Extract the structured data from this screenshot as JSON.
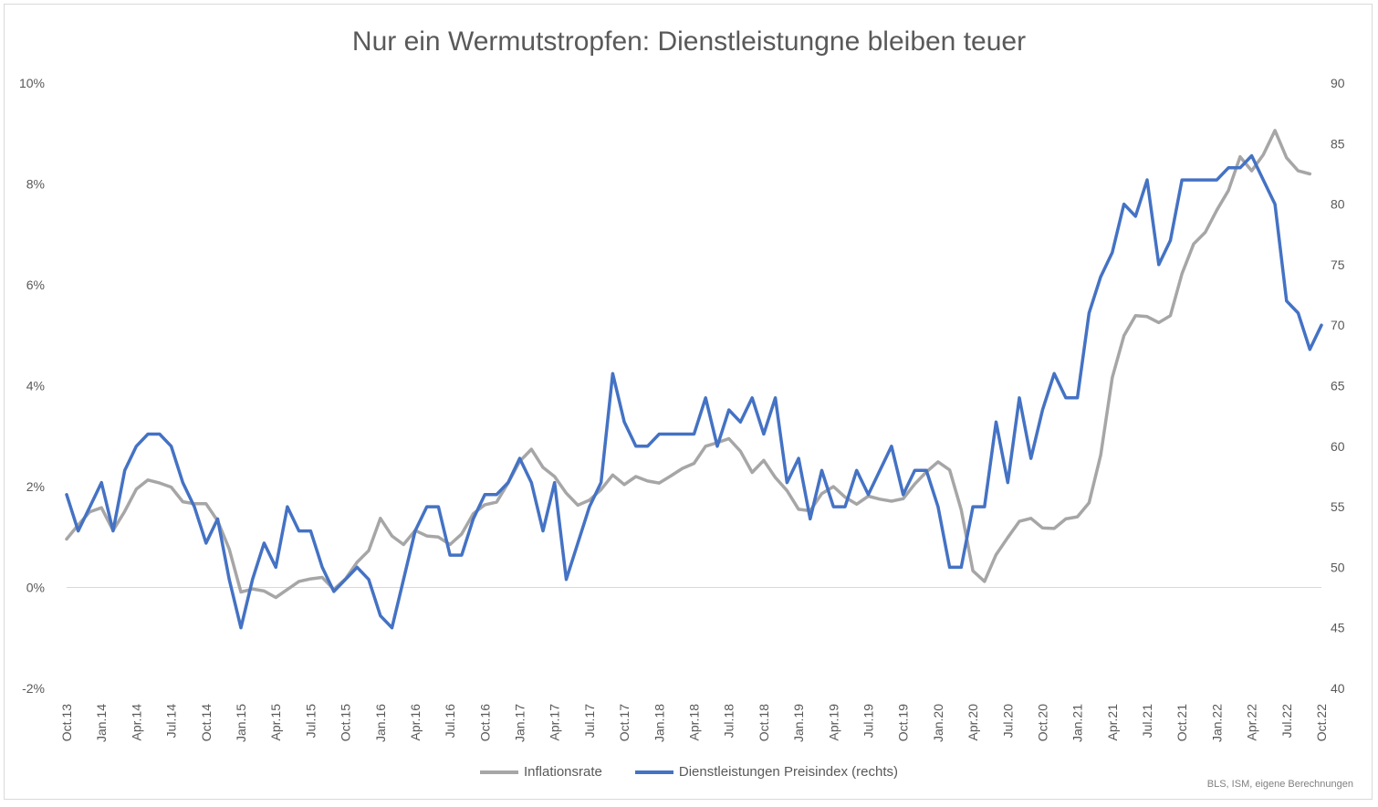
{
  "chart_data": {
    "type": "line",
    "title": "Nur ein Wermutstropfen: Dienstleistungne bleiben teuer",
    "source": "BLS, ISM, eigene Berechnungen",
    "left_axis": {
      "ylim": [
        -2,
        10
      ],
      "ticks": [
        "-2%",
        "0%",
        "2%",
        "4%",
        "6%",
        "8%",
        "10%"
      ],
      "tick_values": [
        -2,
        0,
        2,
        4,
        6,
        8,
        10
      ]
    },
    "right_axis": {
      "ylim": [
        40,
        90
      ],
      "ticks": [
        "40",
        "45",
        "50",
        "55",
        "60",
        "65",
        "70",
        "75",
        "80",
        "85",
        "90"
      ],
      "tick_values": [
        40,
        45,
        50,
        55,
        60,
        65,
        70,
        75,
        80,
        85,
        90
      ]
    },
    "x_tick_labels": [
      "Oct.13",
      "Jan.14",
      "Apr.14",
      "Jul.14",
      "Oct.14",
      "Jan.15",
      "Apr.15",
      "Jul.15",
      "Oct.15",
      "Jan.16",
      "Apr.16",
      "Jul.16",
      "Oct.16",
      "Jan.17",
      "Apr.17",
      "Jul.17",
      "Oct.17",
      "Jan.18",
      "Apr.18",
      "Jul.18",
      "Oct.18",
      "Jan.19",
      "Apr.19",
      "Jul.19",
      "Oct.19",
      "Jan.20",
      "Apr.20",
      "Jul.20",
      "Oct.20",
      "Jan.21",
      "Apr.21",
      "Jul.21",
      "Oct.21",
      "Jan.22",
      "Apr.22",
      "Jul.22",
      "Oct.22"
    ],
    "x_start": "Oct.13",
    "x_end": "Oct.22",
    "series": [
      {
        "name": "Inflationsrate",
        "axis": "left",
        "color": "#a6a6a6",
        "values": [
          0.96,
          1.24,
          1.5,
          1.58,
          1.13,
          1.51,
          1.95,
          2.13,
          2.07,
          1.99,
          1.7,
          1.66,
          1.66,
          1.32,
          0.76,
          -0.09,
          -0.03,
          -0.07,
          -0.2,
          -0.04,
          0.12,
          0.17,
          0.2,
          -0.04,
          0.17,
          0.5,
          0.73,
          1.37,
          1.02,
          0.85,
          1.13,
          1.02,
          1.0,
          0.85,
          1.06,
          1.46,
          1.64,
          1.69,
          2.07,
          2.5,
          2.74,
          2.38,
          2.2,
          1.87,
          1.63,
          1.73,
          1.94,
          2.23,
          2.04,
          2.2,
          2.11,
          2.07,
          2.21,
          2.36,
          2.46,
          2.8,
          2.87,
          2.95,
          2.7,
          2.28,
          2.52,
          2.18,
          1.92,
          1.55,
          1.52,
          1.86,
          2.0,
          1.79,
          1.65,
          1.81,
          1.75,
          1.71,
          1.76,
          2.05,
          2.29,
          2.49,
          2.33,
          1.54,
          0.33,
          0.12,
          0.65,
          0.99,
          1.31,
          1.37,
          1.18,
          1.17,
          1.36,
          1.4,
          1.68,
          2.62,
          4.16,
          4.99,
          5.39,
          5.37,
          5.25,
          5.39,
          6.22,
          6.81,
          7.04,
          7.48,
          7.87,
          8.54,
          8.26,
          8.58,
          9.06,
          8.52,
          8.26,
          8.2
        ],
        "last_index": 107
      },
      {
        "name": "Dienstleistungen Preisindex (rechts)",
        "axis": "right",
        "color": "#4472c4",
        "values": [
          56,
          53,
          55,
          57,
          53,
          58,
          60,
          61,
          61,
          60,
          57,
          55,
          52,
          54,
          49,
          45,
          49,
          52,
          50,
          55,
          53,
          53,
          50,
          48,
          49,
          50,
          49,
          46,
          45,
          49,
          53,
          55,
          55,
          51,
          51,
          54,
          56,
          56,
          57,
          59,
          57,
          53,
          57,
          49,
          52,
          55,
          57,
          66,
          62,
          60,
          60,
          61,
          61,
          61,
          61,
          64,
          60,
          63,
          62,
          64,
          61,
          64,
          57,
          59,
          54,
          58,
          55,
          55,
          58,
          56,
          58,
          60,
          56,
          58,
          58,
          55,
          50,
          50,
          55,
          55,
          62,
          57,
          64,
          59,
          63,
          66,
          64,
          64,
          71,
          74,
          76,
          80,
          79,
          82,
          75,
          77,
          82,
          82,
          82,
          82,
          83,
          83,
          84,
          82,
          80,
          72,
          71,
          68,
          70
        ],
        "last_index": 108
      }
    ]
  }
}
